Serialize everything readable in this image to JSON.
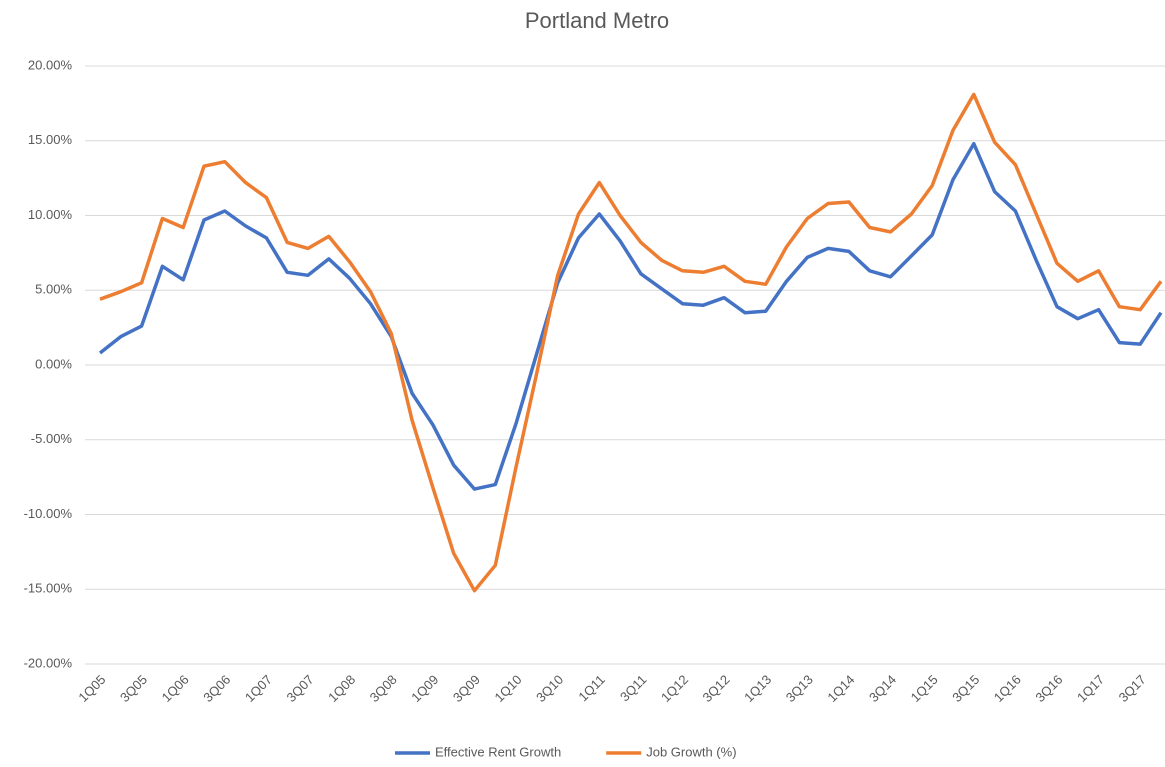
{
  "chart_data": {
    "type": "line",
    "title": "Portland Metro",
    "categories": [
      "1Q05",
      null,
      "3Q05",
      null,
      "1Q06",
      null,
      "3Q06",
      null,
      "1Q07",
      null,
      "3Q07",
      null,
      "1Q08",
      null,
      "3Q08",
      null,
      "1Q09",
      null,
      "3Q09",
      null,
      "1Q10",
      null,
      "3Q10",
      null,
      "1Q11",
      null,
      "3Q11",
      null,
      "1Q12",
      null,
      "3Q12",
      null,
      "1Q13",
      null,
      "3Q13",
      null,
      "1Q14",
      null,
      "3Q14",
      null,
      "1Q15",
      null,
      "3Q15",
      null,
      "1Q16",
      null,
      "3Q16",
      null,
      "1Q17",
      null,
      "3Q17",
      null
    ],
    "series": [
      {
        "name": "Effective Rent Growth",
        "color": "#4472c4",
        "values": [
          0.8,
          1.9,
          2.6,
          6.6,
          5.7,
          9.7,
          10.3,
          9.3,
          8.5,
          6.2,
          6.0,
          7.1,
          5.8,
          4.1,
          1.9,
          -1.9,
          -4.0,
          -6.7,
          -8.3,
          -8.0,
          -3.9,
          0.8,
          5.5,
          8.5,
          10.1,
          8.3,
          6.1,
          5.1,
          4.1,
          4.0,
          4.5,
          3.5,
          3.6,
          5.6,
          7.2,
          7.8,
          7.6,
          6.3,
          5.9,
          7.3,
          8.7,
          12.4,
          14.8,
          11.6,
          10.3,
          7.0,
          3.9,
          3.1,
          3.7,
          1.5,
          1.4,
          3.5
        ]
      },
      {
        "name": "Job Growth (%)",
        "color": "#ed7d31",
        "values": [
          4.4,
          4.9,
          5.5,
          9.8,
          9.2,
          13.3,
          13.6,
          12.2,
          11.2,
          8.2,
          7.8,
          8.6,
          6.9,
          4.9,
          2.1,
          -3.7,
          -8.2,
          -12.6,
          -15.1,
          -13.4,
          -6.8,
          -0.5,
          6.0,
          10.1,
          12.2,
          10.0,
          8.2,
          7.0,
          6.3,
          6.2,
          6.6,
          5.6,
          5.4,
          7.9,
          9.8,
          10.8,
          10.9,
          9.2,
          8.9,
          10.1,
          12.0,
          15.7,
          18.1,
          14.9,
          13.4,
          10.1,
          6.8,
          5.6,
          6.3,
          3.9,
          3.7,
          5.6
        ]
      }
    ],
    "ylim": [
      -20,
      20
    ],
    "yticks": [
      {
        "value": -20,
        "label": "-20.00%"
      },
      {
        "value": -15,
        "label": "-15.00%"
      },
      {
        "value": -10,
        "label": "-10.00%"
      },
      {
        "value": -5,
        "label": "-5.00%"
      },
      {
        "value": 0,
        "label": "0.00%"
      },
      {
        "value": 5,
        "label": "5.00%"
      },
      {
        "value": 10,
        "label": "10.00%"
      },
      {
        "value": 15,
        "label": "15.00%"
      },
      {
        "value": 20,
        "label": "20.00%"
      }
    ],
    "grid": true,
    "legend": "bottom"
  }
}
